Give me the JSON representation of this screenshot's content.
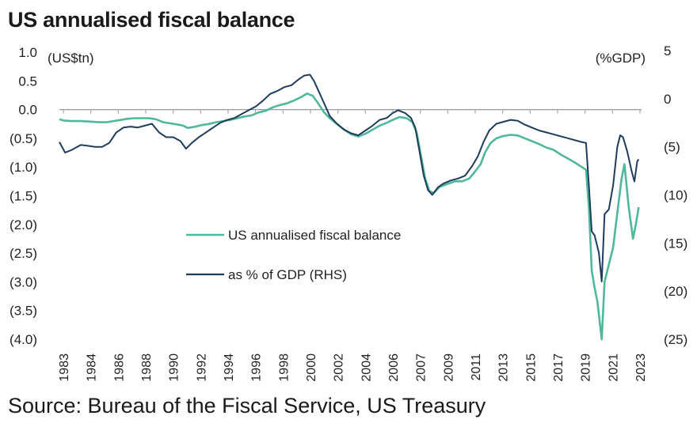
{
  "chart_data": {
    "type": "line",
    "title": "US annualised fiscal balance",
    "source": "Source: Bureau of the Fiscal Service, US Treasury",
    "left_axis": {
      "unit_label": "(US$tn)",
      "range": [
        -4.0,
        1.0
      ],
      "ticks": [
        1.0,
        0.5,
        0.0,
        -0.5,
        -1.0,
        -1.5,
        -2.0,
        -2.5,
        -3.0,
        -3.5,
        -4.0
      ],
      "tick_labels": [
        "1.0",
        "0.5",
        "0.0",
        "(0.5)",
        "(1.0)",
        "(1.5)",
        "(2.0)",
        "(2.5)",
        "(3.0)",
        "(3.5)",
        "(4.0)"
      ]
    },
    "right_axis": {
      "unit_label": "(%GDP)",
      "range": [
        -25,
        5
      ],
      "ticks": [
        5,
        0,
        -5,
        -10,
        -15,
        -20,
        -25
      ],
      "tick_labels": [
        "5",
        "0",
        "(5)",
        "(10)",
        "(15)",
        "(20)",
        "(25)"
      ]
    },
    "x_axis": {
      "range": [
        1983,
        2023.9
      ],
      "tick_labels": [
        "1983",
        "1984",
        "1986",
        "1988",
        "1990",
        "1992",
        "1994",
        "1996",
        "1998",
        "2000",
        "2002",
        "2004",
        "2006",
        "2007",
        "2009",
        "2011",
        "2013",
        "2015",
        "2017",
        "2019",
        "2021",
        "2023"
      ]
    },
    "grid": false,
    "legend_placement": "center-left",
    "series": [
      {
        "name": "US annualised fiscal balance",
        "axis": "left",
        "color": "#4fb89a",
        "points": [
          [
            1983.0,
            -0.17
          ],
          [
            1983.3,
            -0.19
          ],
          [
            1983.8,
            -0.2
          ],
          [
            1984.5,
            -0.2
          ],
          [
            1985.2,
            -0.21
          ],
          [
            1985.8,
            -0.22
          ],
          [
            1986.3,
            -0.22
          ],
          [
            1986.8,
            -0.2
          ],
          [
            1987.3,
            -0.18
          ],
          [
            1987.8,
            -0.16
          ],
          [
            1988.3,
            -0.15
          ],
          [
            1988.8,
            -0.15
          ],
          [
            1989.3,
            -0.15
          ],
          [
            1989.8,
            -0.17
          ],
          [
            1990.3,
            -0.22
          ],
          [
            1990.8,
            -0.24
          ],
          [
            1991.3,
            -0.26
          ],
          [
            1991.7,
            -0.28
          ],
          [
            1992.0,
            -0.32
          ],
          [
            1992.5,
            -0.3
          ],
          [
            1993.0,
            -0.27
          ],
          [
            1993.5,
            -0.25
          ],
          [
            1994.0,
            -0.22
          ],
          [
            1994.5,
            -0.2
          ],
          [
            1995.0,
            -0.18
          ],
          [
            1995.5,
            -0.15
          ],
          [
            1996.0,
            -0.12
          ],
          [
            1996.5,
            -0.1
          ],
          [
            1997.0,
            -0.05
          ],
          [
            1997.5,
            -0.02
          ],
          [
            1998.0,
            0.04
          ],
          [
            1998.5,
            0.08
          ],
          [
            1999.0,
            0.11
          ],
          [
            1999.5,
            0.16
          ],
          [
            2000.0,
            0.22
          ],
          [
            2000.4,
            0.28
          ],
          [
            2000.8,
            0.24
          ],
          [
            2001.2,
            0.1
          ],
          [
            2001.6,
            -0.05
          ],
          [
            2002.0,
            -0.15
          ],
          [
            2002.5,
            -0.25
          ],
          [
            2003.0,
            -0.35
          ],
          [
            2003.5,
            -0.43
          ],
          [
            2004.0,
            -0.47
          ],
          [
            2004.5,
            -0.42
          ],
          [
            2005.0,
            -0.35
          ],
          [
            2005.5,
            -0.28
          ],
          [
            2006.0,
            -0.23
          ],
          [
            2006.5,
            -0.17
          ],
          [
            2006.9,
            -0.13
          ],
          [
            2007.4,
            -0.15
          ],
          [
            2007.8,
            -0.22
          ],
          [
            2008.1,
            -0.4
          ],
          [
            2008.4,
            -0.8
          ],
          [
            2008.7,
            -1.2
          ],
          [
            2009.0,
            -1.42
          ],
          [
            2009.3,
            -1.45
          ],
          [
            2009.7,
            -1.35
          ],
          [
            2010.2,
            -1.3
          ],
          [
            2010.8,
            -1.25
          ],
          [
            2011.3,
            -1.25
          ],
          [
            2011.8,
            -1.2
          ],
          [
            2012.2,
            -1.08
          ],
          [
            2012.6,
            -0.95
          ],
          [
            2012.9,
            -0.75
          ],
          [
            2013.3,
            -0.58
          ],
          [
            2013.7,
            -0.5
          ],
          [
            2014.2,
            -0.46
          ],
          [
            2014.7,
            -0.44
          ],
          [
            2015.2,
            -0.45
          ],
          [
            2015.7,
            -0.5
          ],
          [
            2016.2,
            -0.55
          ],
          [
            2016.7,
            -0.6
          ],
          [
            2017.2,
            -0.66
          ],
          [
            2017.7,
            -0.7
          ],
          [
            2018.2,
            -0.78
          ],
          [
            2018.7,
            -0.85
          ],
          [
            2019.2,
            -0.92
          ],
          [
            2019.7,
            -1.0
          ],
          [
            2020.0,
            -1.05
          ],
          [
            2020.2,
            -1.7
          ],
          [
            2020.4,
            -2.8
          ],
          [
            2020.6,
            -3.1
          ],
          [
            2020.8,
            -3.35
          ],
          [
            2021.1,
            -4.0
          ],
          [
            2021.3,
            -3.0
          ],
          [
            2021.6,
            -2.7
          ],
          [
            2021.9,
            -2.4
          ],
          [
            2022.2,
            -1.8
          ],
          [
            2022.5,
            -1.2
          ],
          [
            2022.7,
            -0.95
          ],
          [
            2023.0,
            -1.7
          ],
          [
            2023.3,
            -2.25
          ],
          [
            2023.5,
            -2.0
          ],
          [
            2023.7,
            -1.7
          ]
        ]
      },
      {
        "name": "as % of GDP (RHS)",
        "axis": "right",
        "color": "#1f3c5c",
        "points": [
          [
            1983.0,
            -4.5
          ],
          [
            1983.4,
            -5.6
          ],
          [
            1983.9,
            -5.3
          ],
          [
            1984.5,
            -4.8
          ],
          [
            1985.0,
            -4.9
          ],
          [
            1985.5,
            -5.0
          ],
          [
            1986.0,
            -5.0
          ],
          [
            1986.5,
            -4.6
          ],
          [
            1987.0,
            -3.5
          ],
          [
            1987.5,
            -3.0
          ],
          [
            1988.0,
            -2.9
          ],
          [
            1988.5,
            -3.0
          ],
          [
            1989.0,
            -2.8
          ],
          [
            1989.5,
            -2.6
          ],
          [
            1990.0,
            -3.5
          ],
          [
            1990.5,
            -4.0
          ],
          [
            1991.0,
            -4.0
          ],
          [
            1991.5,
            -4.4
          ],
          [
            1991.9,
            -5.2
          ],
          [
            1992.3,
            -4.6
          ],
          [
            1992.8,
            -4.0
          ],
          [
            1993.3,
            -3.5
          ],
          [
            1993.8,
            -3.0
          ],
          [
            1994.3,
            -2.5
          ],
          [
            1994.8,
            -2.2
          ],
          [
            1995.3,
            -2.0
          ],
          [
            1995.8,
            -1.6
          ],
          [
            1996.3,
            -1.2
          ],
          [
            1996.8,
            -0.8
          ],
          [
            1997.3,
            -0.2
          ],
          [
            1997.8,
            0.5
          ],
          [
            1998.3,
            0.8
          ],
          [
            1998.8,
            1.2
          ],
          [
            1999.3,
            1.4
          ],
          [
            1999.8,
            2.0
          ],
          [
            2000.2,
            2.4
          ],
          [
            2000.6,
            2.5
          ],
          [
            2000.9,
            1.8
          ],
          [
            2001.3,
            0.5
          ],
          [
            2001.6,
            -0.5
          ],
          [
            2002.0,
            -1.8
          ],
          [
            2002.5,
            -2.6
          ],
          [
            2003.0,
            -3.2
          ],
          [
            2003.5,
            -3.6
          ],
          [
            2004.0,
            -3.8
          ],
          [
            2004.5,
            -3.3
          ],
          [
            2005.0,
            -2.8
          ],
          [
            2005.5,
            -2.2
          ],
          [
            2006.0,
            -2.0
          ],
          [
            2006.4,
            -1.5
          ],
          [
            2006.8,
            -1.2
          ],
          [
            2007.3,
            -1.5
          ],
          [
            2007.7,
            -2.0
          ],
          [
            2008.0,
            -3.0
          ],
          [
            2008.3,
            -5.5
          ],
          [
            2008.6,
            -8.0
          ],
          [
            2008.9,
            -9.5
          ],
          [
            2009.2,
            -10.0
          ],
          [
            2009.6,
            -9.2
          ],
          [
            2010.0,
            -8.8
          ],
          [
            2010.5,
            -8.5
          ],
          [
            2011.0,
            -8.3
          ],
          [
            2011.5,
            -8.0
          ],
          [
            2012.0,
            -7.0
          ],
          [
            2012.4,
            -6.0
          ],
          [
            2012.8,
            -4.5
          ],
          [
            2013.2,
            -3.3
          ],
          [
            2013.7,
            -2.6
          ],
          [
            2014.2,
            -2.4
          ],
          [
            2014.7,
            -2.2
          ],
          [
            2015.2,
            -2.3
          ],
          [
            2015.7,
            -2.7
          ],
          [
            2016.2,
            -3.0
          ],
          [
            2016.7,
            -3.3
          ],
          [
            2017.2,
            -3.5
          ],
          [
            2017.7,
            -3.7
          ],
          [
            2018.2,
            -3.9
          ],
          [
            2018.7,
            -4.1
          ],
          [
            2019.2,
            -4.3
          ],
          [
            2019.7,
            -4.5
          ],
          [
            2020.0,
            -4.6
          ],
          [
            2020.2,
            -9.0
          ],
          [
            2020.4,
            -13.8
          ],
          [
            2020.6,
            -14.2
          ],
          [
            2020.9,
            -16.0
          ],
          [
            2021.1,
            -19.0
          ],
          [
            2021.3,
            -12.0
          ],
          [
            2021.6,
            -11.5
          ],
          [
            2021.9,
            -9.0
          ],
          [
            2022.2,
            -5.0
          ],
          [
            2022.4,
            -3.8
          ],
          [
            2022.6,
            -4.0
          ],
          [
            2022.9,
            -5.5
          ],
          [
            2023.2,
            -7.5
          ],
          [
            2023.4,
            -8.6
          ],
          [
            2023.6,
            -6.5
          ],
          [
            2023.7,
            -6.3
          ]
        ]
      }
    ]
  }
}
